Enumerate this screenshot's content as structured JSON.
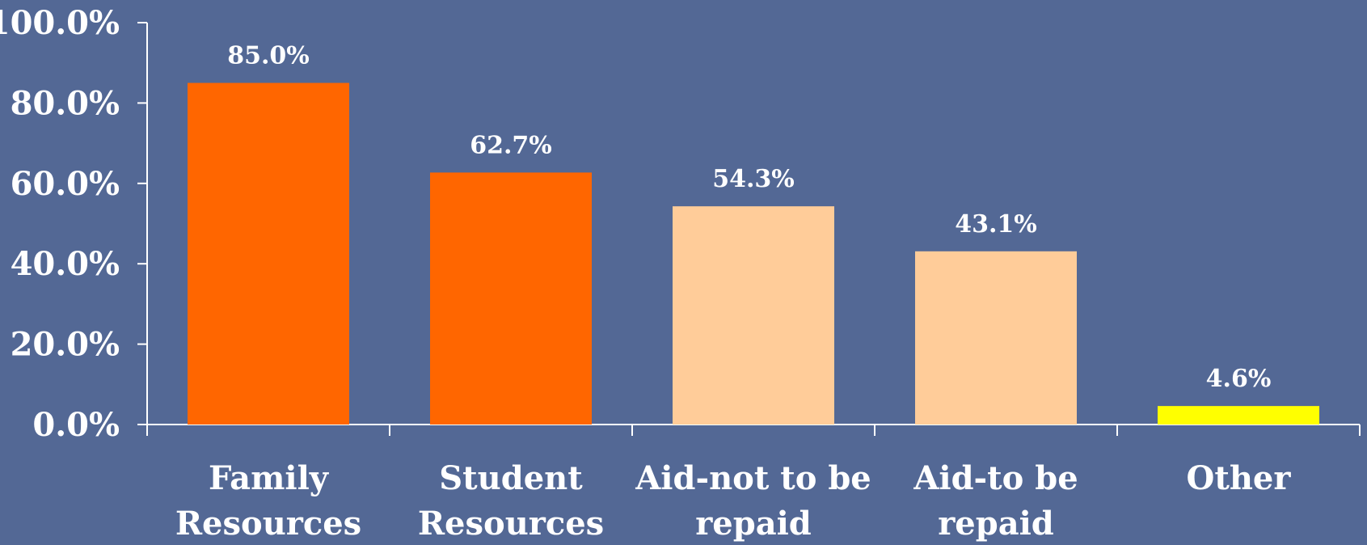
{
  "chart_data": {
    "type": "bar",
    "title": "",
    "xlabel": "",
    "ylabel": "",
    "categories": [
      [
        "Family",
        "Resources"
      ],
      [
        "Student",
        "Resources"
      ],
      [
        "Aid-not to be",
        "repaid"
      ],
      [
        "Aid-to be",
        "repaid"
      ],
      [
        "Other"
      ]
    ],
    "values": [
      85.0,
      62.7,
      54.3,
      43.1,
      4.6
    ],
    "data_labels": [
      "85.0%",
      "62.7%",
      "54.3%",
      "43.1%",
      "4.6%"
    ],
    "bar_colors": [
      "#FF6600",
      "#FF6600",
      "#FFCC99",
      "#FFCC99",
      "#FFFF00"
    ],
    "ylim": [
      0,
      100
    ],
    "yticks": [
      0,
      20,
      40,
      60,
      80,
      100
    ],
    "ytick_labels": [
      "0.0%",
      "20.0%",
      "40.0%",
      "60.0%",
      "80.0%",
      "100.0%"
    ],
    "grid": false,
    "legend": "none"
  },
  "colors": {
    "background": "#536895",
    "axis": "#FFFFFF",
    "text": "#FFFFFF"
  }
}
